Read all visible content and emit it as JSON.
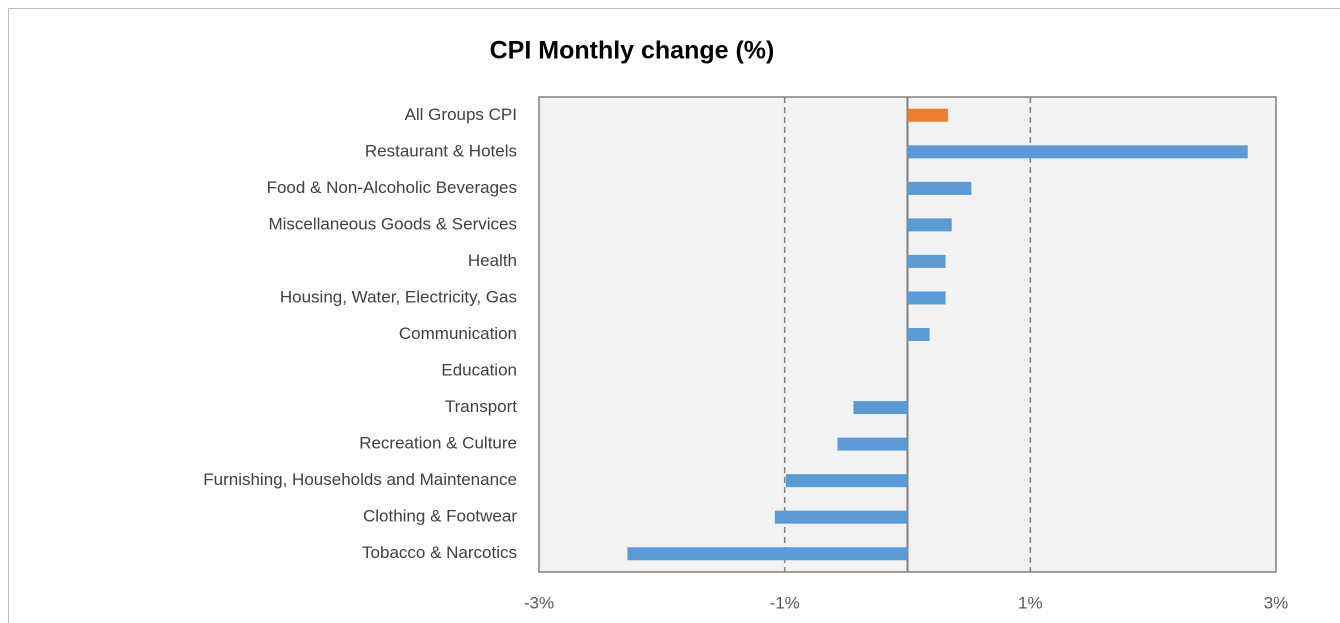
{
  "chart_data": {
    "type": "barh",
    "title": "CPI Monthly change (%)",
    "categories": [
      "All Groups CPI",
      "Restaurant & Hotels",
      "Food & Non-Alcoholic Beverages",
      "Miscellaneous Goods & Services",
      "Health",
      "Housing, Water, Electricity, Gas",
      "Communication",
      "Education",
      "Transport",
      "Recreation & Culture",
      "Furnishing, Households and Maintenance",
      "Clothing & Footwear",
      "Tobacco & Narcotics"
    ],
    "values": [
      0.33,
      2.77,
      0.52,
      0.36,
      0.31,
      0.31,
      0.18,
      0,
      -0.44,
      -0.57,
      -0.99,
      -1.08,
      -2.28
    ],
    "colors": [
      "#ed7d31",
      "#5b9bd5",
      "#5b9bd5",
      "#5b9bd5",
      "#5b9bd5",
      "#5b9bd5",
      "#5b9bd5",
      "#5b9bd5",
      "#5b9bd5",
      "#5b9bd5",
      "#5b9bd5",
      "#5b9bd5",
      "#5b9bd5"
    ],
    "xlim": [
      -3,
      3
    ],
    "xticks": [
      {
        "value": -3,
        "label": "-3%"
      },
      {
        "value": -1,
        "label": "-1%"
      },
      {
        "value": 1,
        "label": "1%"
      },
      {
        "value": 3,
        "label": "3%"
      }
    ],
    "grid": true
  }
}
